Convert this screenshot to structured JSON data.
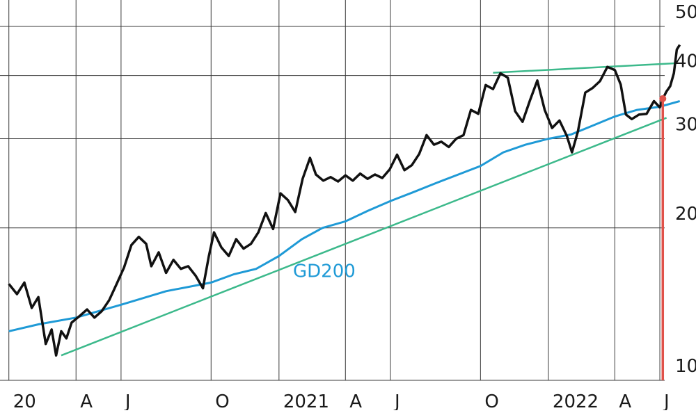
{
  "chart_data": {
    "type": "line",
    "title": "",
    "log_scale_y": true,
    "ylim": [
      10,
      50
    ],
    "grid": true,
    "y_ticks": [
      {
        "value": 50,
        "label": "50"
      },
      {
        "value": 40,
        "label": "40"
      },
      {
        "value": 30,
        "label": "30"
      },
      {
        "value": 20,
        "label": "20"
      },
      {
        "value": 10,
        "label": "10"
      }
    ],
    "x_ticks": [
      {
        "date": "2020-01-01",
        "label": "20"
      },
      {
        "date": "2020-04-01",
        "label": "A"
      },
      {
        "date": "2020-06-01",
        "label": "J"
      },
      {
        "date": "2020-10-01",
        "label": "O"
      },
      {
        "date": "2021-01-01",
        "label": "2021"
      },
      {
        "date": "2021-04-01",
        "label": "A"
      },
      {
        "date": "2021-06-01",
        "label": "J"
      },
      {
        "date": "2021-10-01",
        "label": "O"
      },
      {
        "date": "2022-01-01",
        "label": "2022"
      },
      {
        "date": "2022-04-01",
        "label": "A"
      },
      {
        "date": "2022-06-01",
        "label": "J"
      }
    ],
    "xlim": [
      "2019-12-20",
      "2022-07-20"
    ],
    "colors": {
      "price": "#111111",
      "gd200": "#1f9ad6",
      "trend": "#3cb98b",
      "marker": "#e0524a",
      "grid": "#3a3a3a"
    },
    "series": [
      {
        "id": "price",
        "points": [
          [
            "2020-01-01",
            15.5
          ],
          [
            "2020-01-12",
            14.8
          ],
          [
            "2020-01-22",
            15.6
          ],
          [
            "2020-02-01",
            13.9
          ],
          [
            "2020-02-10",
            14.6
          ],
          [
            "2020-02-20",
            11.8
          ],
          [
            "2020-02-28",
            12.6
          ],
          [
            "2020-03-05",
            11.2
          ],
          [
            "2020-03-12",
            12.5
          ],
          [
            "2020-03-19",
            12.1
          ],
          [
            "2020-03-26",
            13.0
          ],
          [
            "2020-04-06",
            13.4
          ],
          [
            "2020-04-16",
            13.8
          ],
          [
            "2020-04-26",
            13.3
          ],
          [
            "2020-05-06",
            13.7
          ],
          [
            "2020-05-16",
            14.4
          ],
          [
            "2020-05-26",
            15.5
          ],
          [
            "2020-06-05",
            16.7
          ],
          [
            "2020-06-15",
            18.5
          ],
          [
            "2020-06-25",
            19.2
          ],
          [
            "2020-07-05",
            18.6
          ],
          [
            "2020-07-12",
            16.8
          ],
          [
            "2020-07-22",
            17.9
          ],
          [
            "2020-08-01",
            16.3
          ],
          [
            "2020-08-11",
            17.3
          ],
          [
            "2020-08-21",
            16.6
          ],
          [
            "2020-08-31",
            16.8
          ],
          [
            "2020-09-10",
            16.1
          ],
          [
            "2020-09-20",
            15.2
          ],
          [
            "2020-09-28",
            17.6
          ],
          [
            "2020-10-05",
            19.6
          ],
          [
            "2020-10-15",
            18.3
          ],
          [
            "2020-10-25",
            17.6
          ],
          [
            "2020-11-04",
            19.0
          ],
          [
            "2020-11-14",
            18.2
          ],
          [
            "2020-11-24",
            18.6
          ],
          [
            "2020-12-04",
            19.6
          ],
          [
            "2020-12-14",
            21.4
          ],
          [
            "2020-12-24",
            19.9
          ],
          [
            "2021-01-03",
            23.4
          ],
          [
            "2021-01-13",
            22.7
          ],
          [
            "2021-01-23",
            21.5
          ],
          [
            "2021-02-02",
            25.0
          ],
          [
            "2021-02-12",
            27.5
          ],
          [
            "2021-02-20",
            25.5
          ],
          [
            "2021-03-02",
            24.8
          ],
          [
            "2021-03-12",
            25.2
          ],
          [
            "2021-03-22",
            24.7
          ],
          [
            "2021-04-01",
            25.4
          ],
          [
            "2021-04-11",
            24.8
          ],
          [
            "2021-04-21",
            25.6
          ],
          [
            "2021-05-01",
            25.0
          ],
          [
            "2021-05-11",
            25.5
          ],
          [
            "2021-05-21",
            25.1
          ],
          [
            "2021-05-31",
            26.1
          ],
          [
            "2021-06-10",
            27.9
          ],
          [
            "2021-06-20",
            26.0
          ],
          [
            "2021-06-30",
            26.6
          ],
          [
            "2021-07-10",
            28.0
          ],
          [
            "2021-07-20",
            30.5
          ],
          [
            "2021-07-30",
            29.2
          ],
          [
            "2021-08-09",
            29.6
          ],
          [
            "2021-08-19",
            28.9
          ],
          [
            "2021-08-29",
            30.0
          ],
          [
            "2021-09-08",
            30.5
          ],
          [
            "2021-09-18",
            34.2
          ],
          [
            "2021-09-28",
            33.6
          ],
          [
            "2021-10-08",
            38.3
          ],
          [
            "2021-10-18",
            37.6
          ],
          [
            "2021-10-28",
            40.4
          ],
          [
            "2021-11-07",
            39.6
          ],
          [
            "2021-11-17",
            34.0
          ],
          [
            "2021-11-27",
            32.4
          ],
          [
            "2021-12-07",
            35.7
          ],
          [
            "2021-12-17",
            39.1
          ],
          [
            "2021-12-27",
            34.2
          ],
          [
            "2022-01-06",
            31.5
          ],
          [
            "2022-01-16",
            32.6
          ],
          [
            "2022-01-26",
            30.4
          ],
          [
            "2022-02-02",
            28.2
          ],
          [
            "2022-02-10",
            31.0
          ],
          [
            "2022-02-20",
            37.0
          ],
          [
            "2022-03-02",
            37.8
          ],
          [
            "2022-03-12",
            39.0
          ],
          [
            "2022-03-22",
            41.6
          ],
          [
            "2022-04-01",
            41.0
          ],
          [
            "2022-04-09",
            38.4
          ],
          [
            "2022-04-16",
            33.5
          ],
          [
            "2022-04-24",
            32.8
          ],
          [
            "2022-05-04",
            33.5
          ],
          [
            "2022-05-14",
            33.6
          ],
          [
            "2022-05-24",
            35.6
          ],
          [
            "2022-06-01",
            34.6
          ],
          [
            "2022-06-05",
            36.0
          ],
          [
            "2022-06-10",
            37.2
          ],
          [
            "2022-06-15",
            38.1
          ],
          [
            "2022-06-20",
            40.4
          ],
          [
            "2022-06-24",
            45.0
          ],
          [
            "2022-06-28",
            46.0
          ]
        ]
      },
      {
        "id": "gd200",
        "name": "GD200",
        "points": [
          [
            "2020-01-01",
            12.5
          ],
          [
            "2020-02-10",
            12.9
          ],
          [
            "2020-04-01",
            13.3
          ],
          [
            "2020-06-01",
            14.1
          ],
          [
            "2020-08-01",
            15.0
          ],
          [
            "2020-10-01",
            15.6
          ],
          [
            "2020-11-01",
            16.2
          ],
          [
            "2020-12-01",
            16.6
          ],
          [
            "2021-01-01",
            17.6
          ],
          [
            "2021-02-01",
            19.0
          ],
          [
            "2021-03-01",
            20.0
          ],
          [
            "2021-04-01",
            20.6
          ],
          [
            "2021-05-01",
            21.6
          ],
          [
            "2021-06-01",
            22.6
          ],
          [
            "2021-07-01",
            23.5
          ],
          [
            "2021-08-01",
            24.5
          ],
          [
            "2021-09-01",
            25.5
          ],
          [
            "2021-10-01",
            26.5
          ],
          [
            "2021-11-01",
            28.2
          ],
          [
            "2021-12-01",
            29.2
          ],
          [
            "2022-01-01",
            30.0
          ],
          [
            "2022-02-01",
            30.6
          ],
          [
            "2022-03-01",
            31.8
          ],
          [
            "2022-04-01",
            33.2
          ],
          [
            "2022-05-01",
            34.2
          ],
          [
            "2022-06-01",
            34.7
          ],
          [
            "2022-06-28",
            35.6
          ]
        ]
      },
      {
        "id": "lower-trend",
        "points": [
          [
            "2020-03-12",
            11.2
          ],
          [
            "2022-06-10",
            33.0
          ]
        ]
      },
      {
        "id": "upper-trend",
        "points": [
          [
            "2021-10-18",
            40.5
          ],
          [
            "2022-06-24",
            42.3
          ]
        ]
      }
    ],
    "annotations": [
      {
        "id": "gd200-label",
        "text": "GD200",
        "date": "2021-01-20",
        "value": 16.0
      },
      {
        "id": "signal-marker",
        "date": "2022-06-05",
        "value": 36.0
      }
    ]
  }
}
